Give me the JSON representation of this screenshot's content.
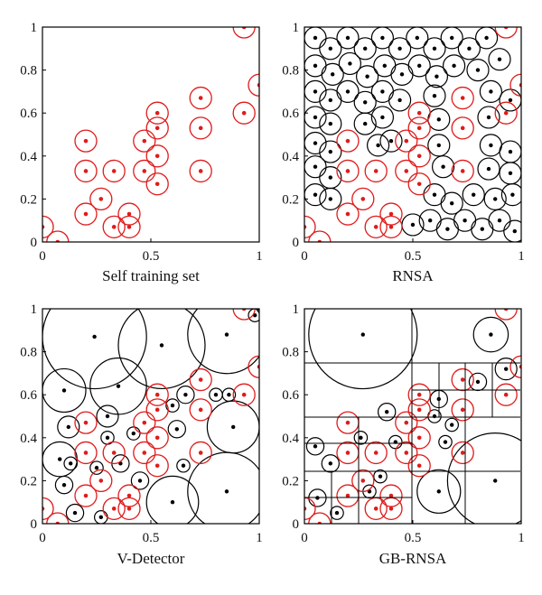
{
  "colors": {
    "self": "#e01b1b",
    "detector": "#000000",
    "axis": "#000000"
  },
  "panel_titles": [
    "Self training set",
    "RNSA",
    "V-Detector",
    "GB-RNSA"
  ],
  "chart_data": [
    {
      "type": "scatter",
      "xlabel": "Self training set",
      "xlim": [
        0,
        1
      ],
      "ylim": [
        0,
        1
      ],
      "xticks": [
        "0",
        "0.5",
        "1"
      ],
      "yticks": [
        "0",
        "0.2",
        "0.4",
        "0.6",
        "0.8",
        "1"
      ],
      "self_radius": 0.05,
      "self_points": [
        [
          0.0,
          0.07
        ],
        [
          0.07,
          0.0
        ],
        [
          0.2,
          0.13
        ],
        [
          0.2,
          0.33
        ],
        [
          0.2,
          0.47
        ],
        [
          0.27,
          0.2
        ],
        [
          0.33,
          0.07
        ],
        [
          0.33,
          0.33
        ],
        [
          0.4,
          0.07
        ],
        [
          0.4,
          0.13
        ],
        [
          0.47,
          0.33
        ],
        [
          0.47,
          0.47
        ],
        [
          0.53,
          0.27
        ],
        [
          0.53,
          0.4
        ],
        [
          0.53,
          0.53
        ],
        [
          0.53,
          0.6
        ],
        [
          0.73,
          0.33
        ],
        [
          0.73,
          0.53
        ],
        [
          0.73,
          0.67
        ],
        [
          0.93,
          0.6
        ],
        [
          0.93,
          1.0
        ],
        [
          1.0,
          0.73
        ]
      ],
      "detectors": []
    },
    {
      "type": "scatter",
      "xlabel": "RNSA",
      "xlim": [
        0,
        1
      ],
      "ylim": [
        0,
        1
      ],
      "xticks": [
        "0",
        "0.5",
        "1"
      ],
      "yticks": [
        "0",
        "0.2",
        "0.4",
        "0.6",
        "0.8",
        "1"
      ],
      "self_radius": 0.05,
      "self_points": [
        [
          0.0,
          0.07
        ],
        [
          0.07,
          0.0
        ],
        [
          0.2,
          0.13
        ],
        [
          0.2,
          0.33
        ],
        [
          0.2,
          0.47
        ],
        [
          0.27,
          0.2
        ],
        [
          0.33,
          0.07
        ],
        [
          0.33,
          0.33
        ],
        [
          0.4,
          0.07
        ],
        [
          0.4,
          0.13
        ],
        [
          0.47,
          0.33
        ],
        [
          0.47,
          0.47
        ],
        [
          0.53,
          0.27
        ],
        [
          0.53,
          0.4
        ],
        [
          0.53,
          0.53
        ],
        [
          0.53,
          0.6
        ],
        [
          0.73,
          0.33
        ],
        [
          0.73,
          0.53
        ],
        [
          0.73,
          0.67
        ],
        [
          0.93,
          0.6
        ],
        [
          0.93,
          1.0
        ],
        [
          1.0,
          0.73
        ]
      ],
      "detectors": [
        [
          0.05,
          0.95,
          0.05
        ],
        [
          0.12,
          0.9,
          0.05
        ],
        [
          0.2,
          0.95,
          0.05
        ],
        [
          0.28,
          0.9,
          0.05
        ],
        [
          0.36,
          0.95,
          0.05
        ],
        [
          0.44,
          0.9,
          0.05
        ],
        [
          0.52,
          0.95,
          0.05
        ],
        [
          0.6,
          0.9,
          0.05
        ],
        [
          0.68,
          0.95,
          0.05
        ],
        [
          0.76,
          0.9,
          0.05
        ],
        [
          0.84,
          0.95,
          0.05
        ],
        [
          0.05,
          0.82,
          0.05
        ],
        [
          0.13,
          0.78,
          0.05
        ],
        [
          0.21,
          0.83,
          0.05
        ],
        [
          0.29,
          0.77,
          0.05
        ],
        [
          0.37,
          0.82,
          0.05
        ],
        [
          0.45,
          0.78,
          0.05
        ],
        [
          0.53,
          0.82,
          0.05
        ],
        [
          0.61,
          0.77,
          0.05
        ],
        [
          0.69,
          0.82,
          0.05
        ],
        [
          0.8,
          0.8,
          0.05
        ],
        [
          0.9,
          0.85,
          0.05
        ],
        [
          0.05,
          0.7,
          0.05
        ],
        [
          0.12,
          0.66,
          0.05
        ],
        [
          0.2,
          0.7,
          0.05
        ],
        [
          0.28,
          0.65,
          0.05
        ],
        [
          0.36,
          0.7,
          0.05
        ],
        [
          0.44,
          0.66,
          0.05
        ],
        [
          0.6,
          0.68,
          0.05
        ],
        [
          0.86,
          0.7,
          0.05
        ],
        [
          0.95,
          0.66,
          0.05
        ],
        [
          0.05,
          0.58,
          0.05
        ],
        [
          0.12,
          0.55,
          0.05
        ],
        [
          0.28,
          0.55,
          0.05
        ],
        [
          0.36,
          0.58,
          0.05
        ],
        [
          0.62,
          0.57,
          0.05
        ],
        [
          0.85,
          0.58,
          0.05
        ],
        [
          0.05,
          0.46,
          0.05
        ],
        [
          0.12,
          0.42,
          0.05
        ],
        [
          0.34,
          0.45,
          0.05
        ],
        [
          0.4,
          0.47,
          0.05
        ],
        [
          0.62,
          0.45,
          0.05
        ],
        [
          0.86,
          0.45,
          0.05
        ],
        [
          0.95,
          0.42,
          0.05
        ],
        [
          0.05,
          0.35,
          0.05
        ],
        [
          0.12,
          0.3,
          0.05
        ],
        [
          0.64,
          0.35,
          0.05
        ],
        [
          0.85,
          0.34,
          0.05
        ],
        [
          0.95,
          0.32,
          0.05
        ],
        [
          0.05,
          0.22,
          0.05
        ],
        [
          0.12,
          0.2,
          0.05
        ],
        [
          0.6,
          0.22,
          0.05
        ],
        [
          0.68,
          0.18,
          0.05
        ],
        [
          0.78,
          0.22,
          0.05
        ],
        [
          0.88,
          0.2,
          0.05
        ],
        [
          0.96,
          0.22,
          0.05
        ],
        [
          0.5,
          0.08,
          0.05
        ],
        [
          0.58,
          0.1,
          0.05
        ],
        [
          0.66,
          0.06,
          0.05
        ],
        [
          0.74,
          0.1,
          0.05
        ],
        [
          0.82,
          0.06,
          0.05
        ],
        [
          0.9,
          0.1,
          0.05
        ],
        [
          0.97,
          0.05,
          0.05
        ]
      ]
    },
    {
      "type": "scatter",
      "xlabel": "V-Detector",
      "xlim": [
        0,
        1
      ],
      "ylim": [
        0,
        1
      ],
      "xticks": [
        "0",
        "0.5",
        "1"
      ],
      "yticks": [
        "0",
        "0.2",
        "0.4",
        "0.6",
        "0.8",
        "1"
      ],
      "self_radius": 0.05,
      "self_points": [
        [
          0.0,
          0.07
        ],
        [
          0.07,
          0.0
        ],
        [
          0.2,
          0.13
        ],
        [
          0.2,
          0.33
        ],
        [
          0.2,
          0.47
        ],
        [
          0.27,
          0.2
        ],
        [
          0.33,
          0.07
        ],
        [
          0.33,
          0.33
        ],
        [
          0.4,
          0.07
        ],
        [
          0.4,
          0.13
        ],
        [
          0.47,
          0.33
        ],
        [
          0.47,
          0.47
        ],
        [
          0.53,
          0.27
        ],
        [
          0.53,
          0.4
        ],
        [
          0.53,
          0.53
        ],
        [
          0.53,
          0.6
        ],
        [
          0.73,
          0.33
        ],
        [
          0.73,
          0.53
        ],
        [
          0.73,
          0.67
        ],
        [
          0.93,
          0.6
        ],
        [
          0.93,
          1.0
        ],
        [
          1.0,
          0.73
        ]
      ],
      "detectors": [
        [
          0.24,
          0.87,
          0.24
        ],
        [
          0.55,
          0.83,
          0.2
        ],
        [
          0.85,
          0.88,
          0.18
        ],
        [
          0.1,
          0.62,
          0.1
        ],
        [
          0.35,
          0.64,
          0.13
        ],
        [
          0.88,
          0.45,
          0.12
        ],
        [
          0.85,
          0.15,
          0.18
        ],
        [
          0.6,
          0.1,
          0.12
        ],
        [
          0.08,
          0.3,
          0.08
        ],
        [
          0.3,
          0.5,
          0.05
        ],
        [
          0.12,
          0.45,
          0.05
        ],
        [
          0.62,
          0.44,
          0.04
        ],
        [
          0.66,
          0.6,
          0.04
        ],
        [
          0.36,
          0.28,
          0.04
        ],
        [
          0.3,
          0.4,
          0.03
        ],
        [
          0.1,
          0.18,
          0.04
        ],
        [
          0.15,
          0.05,
          0.04
        ],
        [
          0.27,
          0.03,
          0.03
        ],
        [
          0.45,
          0.2,
          0.04
        ],
        [
          0.65,
          0.27,
          0.03
        ],
        [
          0.8,
          0.6,
          0.03
        ],
        [
          0.86,
          0.6,
          0.03
        ],
        [
          0.6,
          0.55,
          0.03
        ],
        [
          0.42,
          0.42,
          0.03
        ],
        [
          0.25,
          0.26,
          0.03
        ],
        [
          0.13,
          0.28,
          0.03
        ],
        [
          0.98,
          0.97,
          0.03
        ]
      ]
    },
    {
      "type": "scatter",
      "xlabel": "GB-RNSA",
      "xlim": [
        0,
        1
      ],
      "ylim": [
        0,
        1
      ],
      "xticks": [
        "0",
        "0.5",
        "1"
      ],
      "yticks": [
        "0",
        "0.2",
        "0.4",
        "0.6",
        "0.8",
        "1"
      ],
      "self_radius": 0.05,
      "self_points": [
        [
          0.0,
          0.07
        ],
        [
          0.07,
          0.0
        ],
        [
          0.2,
          0.13
        ],
        [
          0.2,
          0.33
        ],
        [
          0.2,
          0.47
        ],
        [
          0.27,
          0.2
        ],
        [
          0.33,
          0.07
        ],
        [
          0.33,
          0.33
        ],
        [
          0.4,
          0.07
        ],
        [
          0.4,
          0.13
        ],
        [
          0.47,
          0.33
        ],
        [
          0.47,
          0.47
        ],
        [
          0.53,
          0.27
        ],
        [
          0.53,
          0.4
        ],
        [
          0.53,
          0.53
        ],
        [
          0.53,
          0.6
        ],
        [
          0.73,
          0.33
        ],
        [
          0.73,
          0.53
        ],
        [
          0.73,
          0.67
        ],
        [
          0.93,
          0.6
        ],
        [
          0.93,
          1.0
        ],
        [
          1.0,
          0.73
        ]
      ],
      "detectors": [
        [
          0.27,
          0.88,
          0.25
        ],
        [
          0.88,
          0.2,
          0.22
        ],
        [
          0.62,
          0.15,
          0.1
        ],
        [
          0.86,
          0.88,
          0.08
        ],
        [
          0.93,
          0.72,
          0.05
        ],
        [
          0.8,
          0.66,
          0.04
        ],
        [
          0.62,
          0.58,
          0.04
        ],
        [
          0.38,
          0.52,
          0.04
        ],
        [
          0.05,
          0.36,
          0.04
        ],
        [
          0.12,
          0.28,
          0.04
        ],
        [
          0.35,
          0.22,
          0.03
        ],
        [
          0.3,
          0.15,
          0.03
        ],
        [
          0.06,
          0.12,
          0.04
        ],
        [
          0.15,
          0.05,
          0.03
        ],
        [
          0.65,
          0.38,
          0.03
        ],
        [
          0.68,
          0.46,
          0.03
        ],
        [
          0.6,
          0.5,
          0.03
        ],
        [
          0.42,
          0.38,
          0.03
        ],
        [
          0.26,
          0.4,
          0.03
        ]
      ]
    }
  ]
}
